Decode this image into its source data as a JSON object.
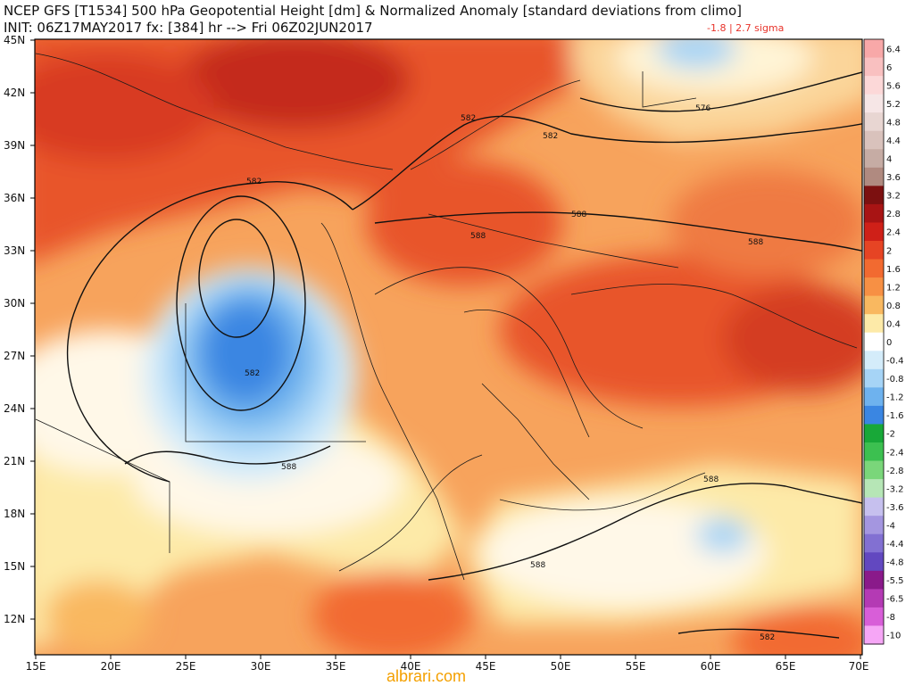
{
  "header": {
    "line1": "NCEP GFS [T1534] 500 hPa Geopotential Height [dm] & Normalized Anomaly [standard deviations from climo]",
    "line2": "INIT: 06Z17MAY2017 fx: [384] hr --> Fri 06Z02JUN2017",
    "range": "-1.8 | 2.7 sigma"
  },
  "map": {
    "lat_labels": [
      "45N",
      "42N",
      "39N",
      "36N",
      "33N",
      "30N",
      "27N",
      "24N",
      "21N",
      "18N",
      "15N",
      "12N"
    ],
    "lon_labels": [
      "15E",
      "20E",
      "25E",
      "30E",
      "35E",
      "40E",
      "45E",
      "50E",
      "55E",
      "60E",
      "65E",
      "70E"
    ],
    "contour_labels": [
      "582",
      "582",
      "582",
      "582",
      "576",
      "588",
      "588",
      "588",
      "588",
      "588",
      "588",
      "582"
    ]
  },
  "colorbar": {
    "labels": [
      "6.4",
      "6",
      "5.6",
      "5.2",
      "4.8",
      "4.4",
      "4",
      "3.6",
      "3.2",
      "2.8",
      "2.4",
      "2",
      "1.6",
      "1.2",
      "0.8",
      "0.4",
      "0",
      "-0.4",
      "-0.8",
      "-1.2",
      "-1.6",
      "-2",
      "-2.4",
      "-2.8",
      "-3.2",
      "-3.6",
      "-4",
      "-4.4",
      "-4.8",
      "-5.5",
      "-6.5",
      "-8",
      "-10"
    ],
    "colors": [
      "#f8a8a8",
      "#f9c0c0",
      "#fcd8d8",
      "#f6e6e6",
      "#e8d6d2",
      "#d9c2bc",
      "#c6aca4",
      "#b08a80",
      "#7c1010",
      "#a81414",
      "#cf2018",
      "#e64424",
      "#f26a30",
      "#f79044",
      "#f9b860",
      "#fdeaa8",
      "#ffffff",
      "#d4ecfa",
      "#a6d4f6",
      "#6eb2ee",
      "#3a86e2",
      "#18a838",
      "#3cc050",
      "#7ad67a",
      "#b6e6b6",
      "#c6c0ee",
      "#a496e0",
      "#8270d2",
      "#6248c0",
      "#8a1a8a",
      "#b43ab4",
      "#d85ed8",
      "#f6a6f6"
    ]
  },
  "watermark": "albrari.com"
}
